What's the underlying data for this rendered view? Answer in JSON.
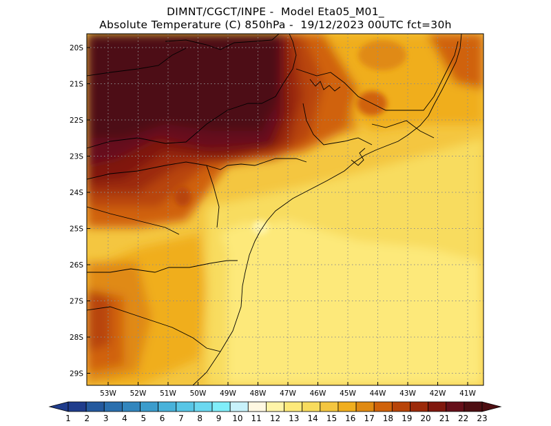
{
  "title": {
    "line1": "DIMNT/CGCT/INPE -  Model Eta05_M01_",
    "line2": "Absolute Temperature (C) 850hPa -  19/12/2023 00UTC fct=30h"
  },
  "map": {
    "lat_labels": [
      "20S",
      "21S",
      "22S",
      "23S",
      "24S",
      "25S",
      "26S",
      "27S",
      "28S",
      "29S"
    ],
    "lon_labels": [
      "53W",
      "52W",
      "51W",
      "50W",
      "49W",
      "48W",
      "47W",
      "46W",
      "45W",
      "44W",
      "43W",
      "42W",
      "41W"
    ],
    "gridlines": true,
    "gridline_style": "dotted",
    "coastline_color": "#000000"
  },
  "colorbar": {
    "labels": [
      "1",
      "2",
      "3",
      "4",
      "5",
      "6",
      "7",
      "8",
      "9",
      "10",
      "11",
      "12",
      "13",
      "14",
      "15",
      "16",
      "17",
      "18",
      "19",
      "20",
      "21",
      "22",
      "23"
    ],
    "colors": [
      "#1f3c8c",
      "#24599e",
      "#2a6fae",
      "#3286be",
      "#3b9ccc",
      "#48b2da",
      "#58c6e6",
      "#6bd8f0",
      "#80eefa",
      "#c8f2fb",
      "#fff8e2",
      "#fff4a8",
      "#fde97a",
      "#f8dc5e",
      "#f4c640",
      "#f0ae1e",
      "#e08a12",
      "#d0620a",
      "#b84408",
      "#9c2a0a",
      "#80180e",
      "#66101a",
      "#4e0e12"
    ]
  }
}
